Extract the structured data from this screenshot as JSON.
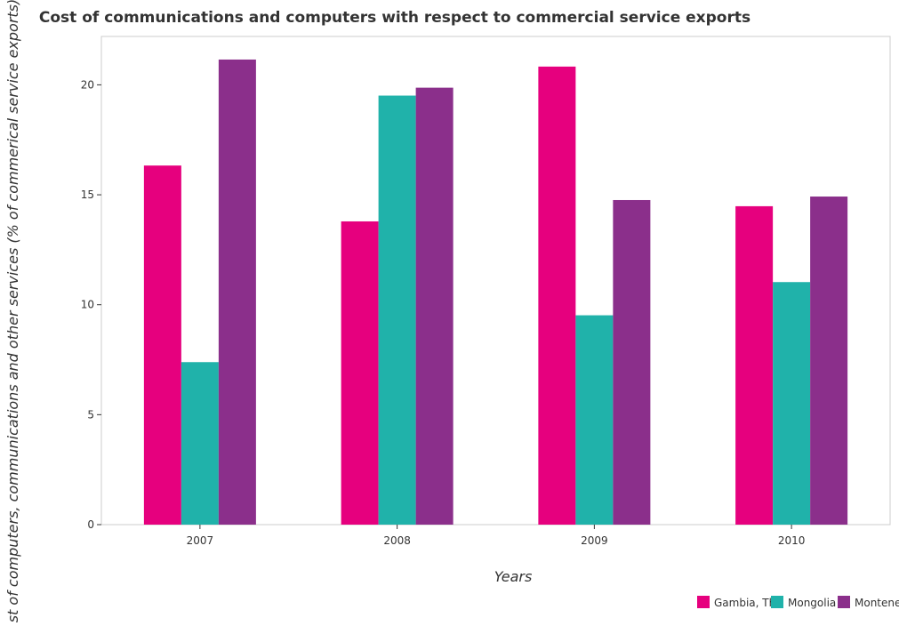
{
  "chart_data": {
    "type": "bar",
    "title": "Cost of communications and computers with respect to commercial service exports",
    "xlabel": "Years",
    "ylabel": "Cost of computers, communications and other services (% of commerical service exports)",
    "categories": [
      "2007",
      "2008",
      "2009",
      "2010"
    ],
    "ylim": [
      0,
      22.2
    ],
    "yticks": [
      0,
      5,
      10,
      15,
      20
    ],
    "grid": false,
    "legend_position": "bottom-right",
    "series": [
      {
        "name": "Gambia, The",
        "color": "#e6007e",
        "values": [
          16.33,
          13.79,
          20.83,
          14.48
        ]
      },
      {
        "name": "Mongolia",
        "color": "#20b2aa",
        "values": [
          7.39,
          19.51,
          9.52,
          11.03
        ]
      },
      {
        "name": "Montenegro",
        "color": "#8b2f8b",
        "values": [
          21.15,
          19.87,
          14.76,
          14.92
        ]
      }
    ]
  }
}
